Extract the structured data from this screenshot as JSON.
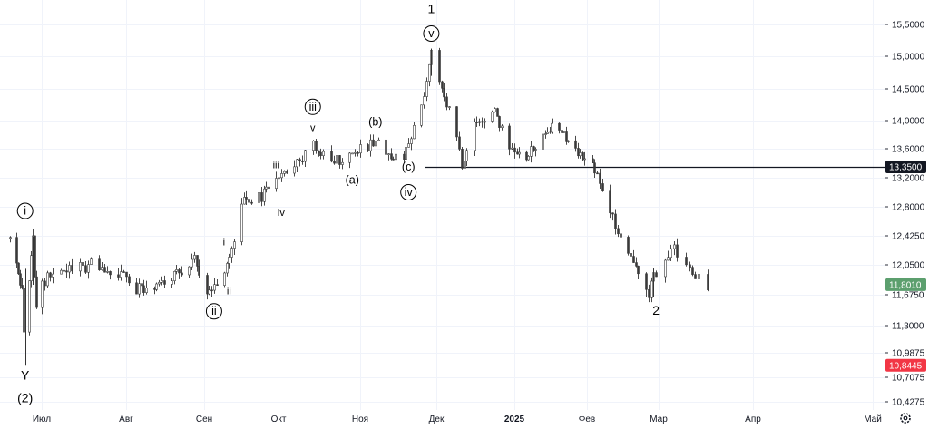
{
  "chart_data": {
    "type": "candlestick",
    "title": "",
    "y_axis": {
      "ticks": [
        "15,5000",
        "15,0000",
        "14,5000",
        "14,0000",
        "13,6000",
        "13,2000",
        "12,8000",
        "12,4250",
        "12,0500",
        "11,6750",
        "11,3000",
        "10,9875",
        "10,7075",
        "10,4275"
      ],
      "tick_values": [
        15.5,
        15.0,
        14.5,
        14.0,
        13.6,
        13.2,
        12.8,
        12.425,
        12.05,
        11.675,
        11.3,
        10.9875,
        10.7075,
        10.4275
      ],
      "ylim": [
        10.38,
        15.65
      ]
    },
    "x_axis": {
      "ticks": [
        {
          "label": "Июл",
          "bold": false
        },
        {
          "label": "Авг",
          "bold": false
        },
        {
          "label": "Сен",
          "bold": false
        },
        {
          "label": "Окт",
          "bold": false
        },
        {
          "label": "Ноя",
          "bold": false
        },
        {
          "label": "Дек",
          "bold": false
        },
        {
          "label": "2025",
          "bold": true
        },
        {
          "label": "Фев",
          "bold": false
        },
        {
          "label": "Мар",
          "bold": false
        },
        {
          "label": "Апр",
          "bold": false
        },
        {
          "label": "Май",
          "bold": false
        }
      ]
    },
    "price_path": [
      [
        "2024-06-14",
        12.4
      ],
      [
        "2024-06-20",
        11.7
      ],
      [
        "2024-06-22",
        10.9
      ],
      [
        "2024-06-24",
        11.9
      ],
      [
        "2024-06-26",
        12.35
      ],
      [
        "2024-06-28",
        11.55
      ],
      [
        "2024-07-02",
        11.85
      ],
      [
        "2024-07-06",
        11.95
      ],
      [
        "2024-07-12",
        12.0
      ],
      [
        "2024-07-20",
        12.05
      ],
      [
        "2024-07-28",
        11.98
      ],
      [
        "2024-08-04",
        11.75
      ],
      [
        "2024-08-12",
        11.8
      ],
      [
        "2024-08-20",
        11.9
      ],
      [
        "2024-08-28",
        12.15
      ],
      [
        "2024-09-01",
        11.7
      ],
      [
        "2024-09-06",
        11.85
      ],
      [
        "2024-09-12",
        12.2
      ],
      [
        "2024-09-16",
        12.85
      ],
      [
        "2024-09-22",
        12.9
      ],
      [
        "2024-09-28",
        13.05
      ],
      [
        "2024-10-06",
        13.35
      ],
      [
        "2024-10-12",
        13.55
      ],
      [
        "2024-10-14",
        13.7
      ],
      [
        "2024-10-18",
        13.5
      ],
      [
        "2024-10-24",
        13.42
      ],
      [
        "2024-11-02",
        13.6
      ],
      [
        "2024-11-07",
        13.72
      ],
      [
        "2024-11-12",
        13.55
      ],
      [
        "2024-11-18",
        13.45
      ],
      [
        "2024-11-22",
        13.9
      ],
      [
        "2024-11-26",
        14.4
      ],
      [
        "2024-11-29",
        15.1
      ],
      [
        "2024-12-03",
        14.55
      ],
      [
        "2024-12-08",
        13.9
      ],
      [
        "2024-12-11",
        13.4
      ],
      [
        "2024-12-16",
        13.95
      ],
      [
        "2024-12-24",
        14.15
      ],
      [
        "2024-12-30",
        13.55
      ],
      [
        "2025-01-05",
        13.45
      ],
      [
        "2025-01-12",
        13.75
      ],
      [
        "2025-01-18",
        13.95
      ],
      [
        "2025-01-24",
        13.7
      ],
      [
        "2025-01-30",
        13.45
      ],
      [
        "2025-02-04",
        13.3
      ],
      [
        "2025-02-08",
        12.95
      ],
      [
        "2025-02-12",
        12.55
      ],
      [
        "2025-02-17",
        12.25
      ],
      [
        "2025-02-22",
        11.95
      ],
      [
        "2025-02-25",
        11.7
      ],
      [
        "2025-03-01",
        12.05
      ],
      [
        "2025-03-06",
        12.3
      ],
      [
        "2025-03-10",
        12.0
      ],
      [
        "2025-03-13",
        11.9
      ],
      [
        "2025-03-17",
        11.8
      ]
    ],
    "horizontal_lines": [
      {
        "value": 13.35,
        "color": "#131722",
        "label": "13,3500"
      },
      {
        "value": 10.8445,
        "color": "#f23645",
        "label": "10,8445"
      }
    ],
    "last_price": {
      "value": 11.801,
      "label": "11,8010",
      "color": "#5c9f6e"
    },
    "annotations": [
      {
        "text": "1",
        "date": "2024-11-29",
        "price": 15.68,
        "circled": false,
        "size": "big"
      },
      {
        "text": "v",
        "date": "2024-11-29",
        "price": 15.3,
        "circled": true,
        "size": "mid"
      },
      {
        "text": "iii",
        "date": "2024-10-14",
        "price": 14.16,
        "circled": true,
        "size": "mid"
      },
      {
        "text": "v",
        "date": "2024-10-14",
        "price": 13.85,
        "circled": false,
        "size": "small"
      },
      {
        "text": "(b)",
        "date": "2024-11-07",
        "price": 13.93,
        "circled": false,
        "size": "mid"
      },
      {
        "text": "(a)",
        "date": "2024-10-29",
        "price": 13.12,
        "circled": false,
        "size": "mid"
      },
      {
        "text": "(c)",
        "date": "2024-11-20",
        "price": 13.3,
        "circled": false,
        "size": "mid"
      },
      {
        "text": "iv",
        "date": "2024-11-20",
        "price": 12.95,
        "circled": true,
        "size": "mid"
      },
      {
        "text": "iii",
        "date": "2024-09-30",
        "price": 13.33,
        "circled": false,
        "size": "small"
      },
      {
        "text": "iv",
        "date": "2024-10-02",
        "price": 12.68,
        "circled": false,
        "size": "small"
      },
      {
        "text": "i",
        "date": "2024-09-09",
        "price": 12.3,
        "circled": false,
        "size": "small"
      },
      {
        "text": "ii",
        "date": "2024-09-11",
        "price": 11.68,
        "circled": false,
        "size": "small"
      },
      {
        "text": "ii",
        "date": "2024-09-05",
        "price": 11.43,
        "circled": true,
        "size": "mid"
      },
      {
        "text": "i",
        "date": "2024-06-22",
        "price": 12.7,
        "circled": true,
        "size": "mid"
      },
      {
        "text": "Y",
        "date": "2024-06-22",
        "price": 10.68,
        "circled": false,
        "size": "big"
      },
      {
        "text": "(2)",
        "date": "2024-06-22",
        "price": 10.42,
        "circled": false,
        "size": "big"
      },
      {
        "text": "2",
        "date": "2025-02-28",
        "price": 11.43,
        "circled": false,
        "size": "big"
      }
    ],
    "candle_colors": {
      "up": "#22ab94",
      "down": "#f23645",
      "neutral": "#555555"
    },
    "grid": true
  },
  "toolbar": {
    "settings_icon": "gear-icon"
  }
}
